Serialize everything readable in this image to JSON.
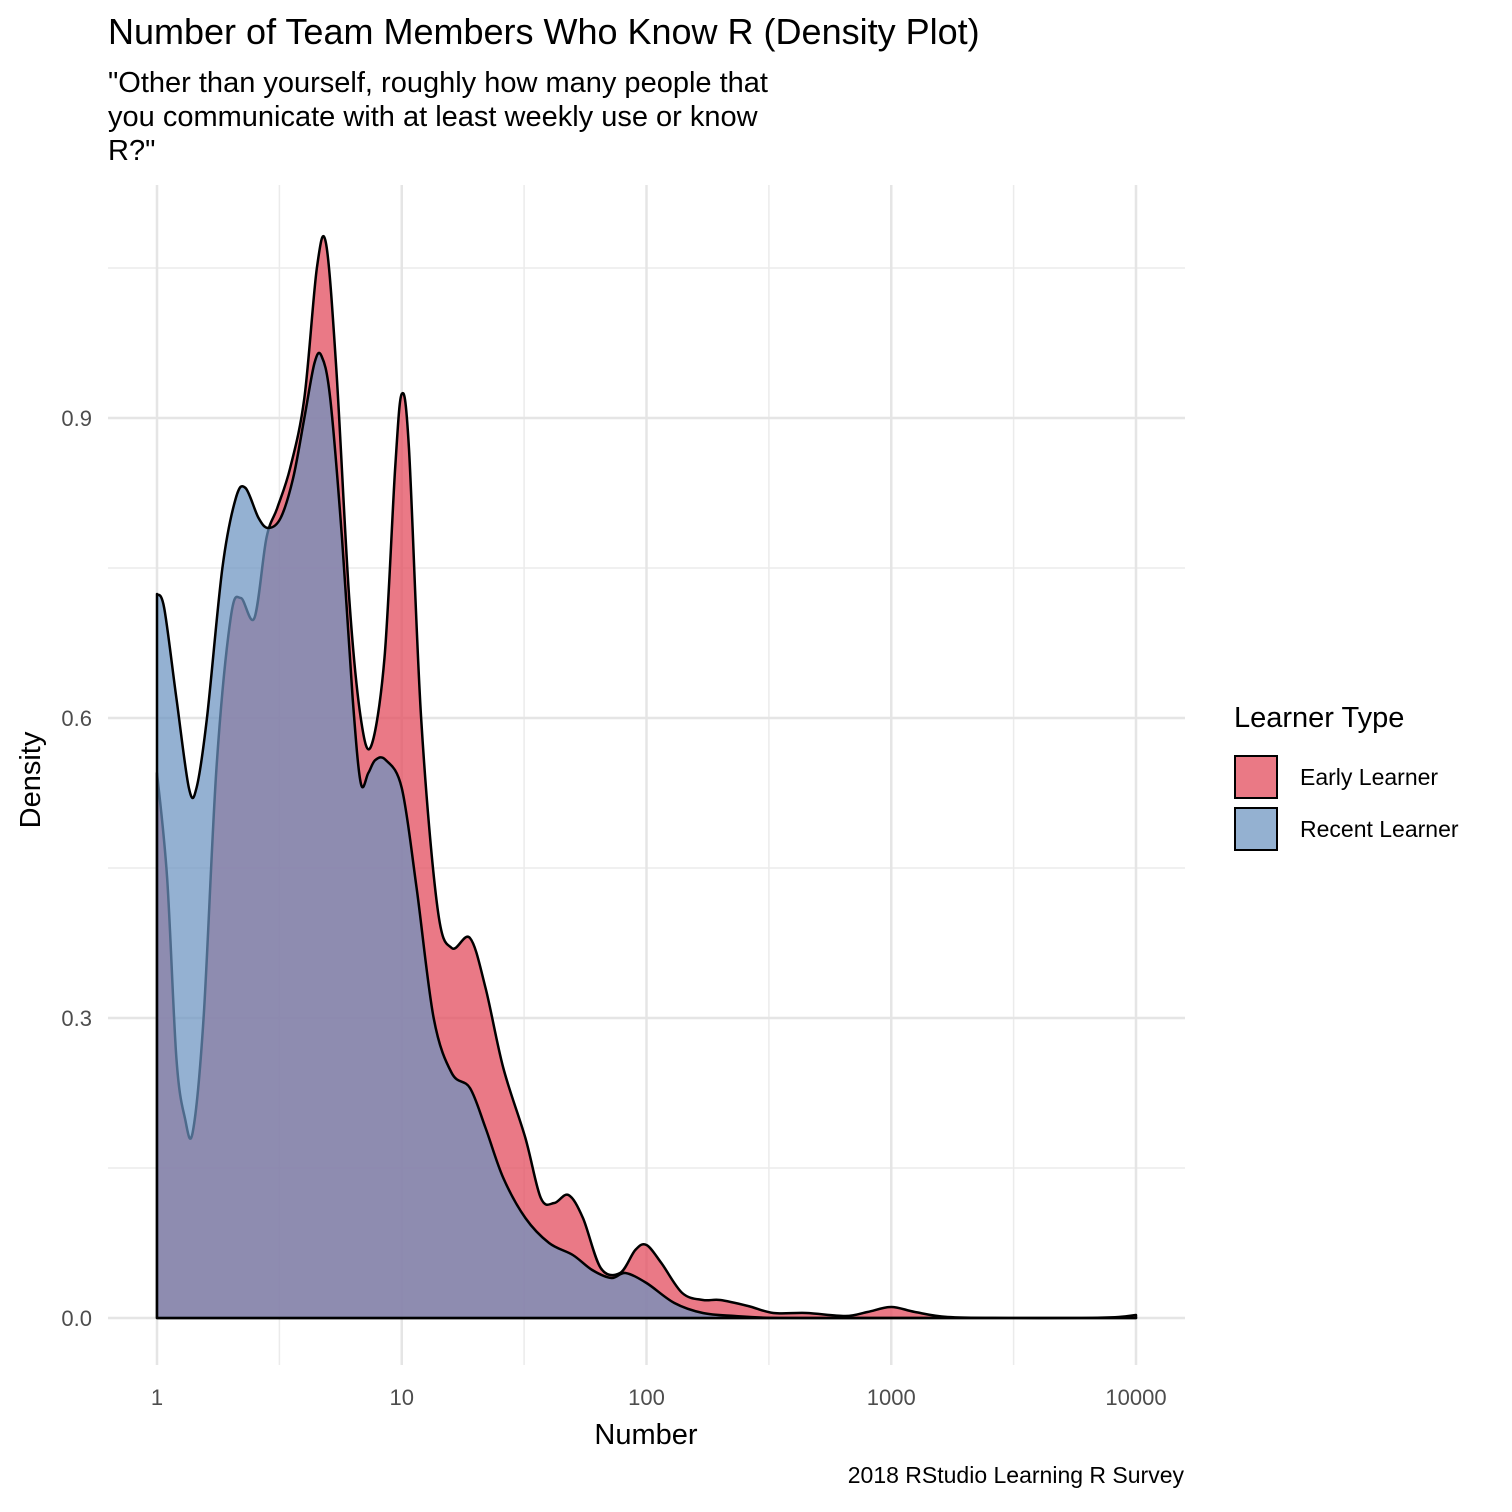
{
  "chart_data": {
    "type": "area",
    "subtype": "density",
    "title": "Number of Team Members Who Know R (Density Plot)",
    "subtitle": "\"Other than yourself, roughly how many people that\nyou communicate with at least weekly use or know\nR?\"",
    "caption": "2018 RStudio Learning R Survey",
    "xlabel": "Number",
    "ylabel": "Density",
    "x_scale": "log10",
    "xlim": [
      1,
      10000
    ],
    "ylim": [
      0,
      1.08
    ],
    "x_ticks": [
      {
        "value": 1,
        "label": "1"
      },
      {
        "value": 10,
        "label": "10"
      },
      {
        "value": 100,
        "label": "100"
      },
      {
        "value": 1000,
        "label": "1000"
      },
      {
        "value": 10000,
        "label": "10000"
      }
    ],
    "y_ticks": [
      {
        "value": 0,
        "label": "0.0"
      },
      {
        "value": 0.3,
        "label": "0.3"
      },
      {
        "value": 0.6,
        "label": "0.6"
      },
      {
        "value": 0.9,
        "label": "0.9"
      }
    ],
    "legend": {
      "title": "Learner Type",
      "position": "right"
    },
    "series": [
      {
        "name": "Early Learner",
        "color": "#e34c5d",
        "opacity": 0.75,
        "points": [
          [
            1,
            0.545
          ],
          [
            1.1,
            0.44
          ],
          [
            1.2,
            0.26
          ],
          [
            1.3,
            0.2
          ],
          [
            1.4,
            0.186
          ],
          [
            1.55,
            0.3
          ],
          [
            1.75,
            0.55
          ],
          [
            2,
            0.7
          ],
          [
            2.2,
            0.72
          ],
          [
            2.5,
            0.7
          ],
          [
            2.8,
            0.78
          ],
          [
            3.1,
            0.81
          ],
          [
            3.5,
            0.85
          ],
          [
            4.0,
            0.92
          ],
          [
            4.5,
            1.05
          ],
          [
            4.9,
            1.075
          ],
          [
            5.4,
            0.95
          ],
          [
            6.1,
            0.72
          ],
          [
            6.8,
            0.6
          ],
          [
            7.5,
            0.572
          ],
          [
            8.5,
            0.66
          ],
          [
            9.4,
            0.85
          ],
          [
            10.0,
            0.924
          ],
          [
            10.7,
            0.87
          ],
          [
            12,
            0.6
          ],
          [
            14,
            0.41
          ],
          [
            16,
            0.37
          ],
          [
            19,
            0.38
          ],
          [
            22,
            0.33
          ],
          [
            26,
            0.25
          ],
          [
            32,
            0.18
          ],
          [
            37,
            0.12
          ],
          [
            42,
            0.115
          ],
          [
            48,
            0.123
          ],
          [
            55,
            0.1
          ],
          [
            65,
            0.05
          ],
          [
            78,
            0.045
          ],
          [
            90,
            0.068
          ],
          [
            100,
            0.073
          ],
          [
            115,
            0.055
          ],
          [
            140,
            0.025
          ],
          [
            170,
            0.018
          ],
          [
            200,
            0.018
          ],
          [
            260,
            0.012
          ],
          [
            330,
            0.005
          ],
          [
            450,
            0.005
          ],
          [
            650,
            0.002
          ],
          [
            800,
            0.006
          ],
          [
            1000,
            0.011
          ],
          [
            1250,
            0.006
          ],
          [
            1700,
            0.001
          ],
          [
            3000,
            0.0
          ],
          [
            6000,
            0.0
          ],
          [
            8500,
            0.001
          ],
          [
            10000,
            0.003
          ]
        ]
      },
      {
        "name": "Recent Learner",
        "color": "#6b93c0",
        "opacity": 0.72,
        "points": [
          [
            1,
            0.724
          ],
          [
            1.07,
            0.71
          ],
          [
            1.2,
            0.62
          ],
          [
            1.35,
            0.53
          ],
          [
            1.45,
            0.53
          ],
          [
            1.6,
            0.6
          ],
          [
            1.85,
            0.75
          ],
          [
            2.1,
            0.82
          ],
          [
            2.3,
            0.83
          ],
          [
            2.6,
            0.8
          ],
          [
            2.85,
            0.79
          ],
          [
            3.2,
            0.8
          ],
          [
            3.6,
            0.84
          ],
          [
            4.0,
            0.9
          ],
          [
            4.4,
            0.955
          ],
          [
            4.7,
            0.962
          ],
          [
            5.1,
            0.92
          ],
          [
            5.7,
            0.78
          ],
          [
            6.3,
            0.62
          ],
          [
            6.8,
            0.535
          ],
          [
            7.3,
            0.545
          ],
          [
            7.8,
            0.558
          ],
          [
            8.6,
            0.558
          ],
          [
            10.0,
            0.53
          ],
          [
            11.5,
            0.43
          ],
          [
            13.5,
            0.3
          ],
          [
            16,
            0.245
          ],
          [
            19,
            0.23
          ],
          [
            22,
            0.19
          ],
          [
            26,
            0.14
          ],
          [
            32,
            0.1
          ],
          [
            40,
            0.075
          ],
          [
            50,
            0.063
          ],
          [
            60,
            0.048
          ],
          [
            72,
            0.04
          ],
          [
            82,
            0.045
          ],
          [
            100,
            0.035
          ],
          [
            130,
            0.015
          ],
          [
            170,
            0.005
          ],
          [
            230,
            0.002
          ],
          [
            350,
            0.0
          ],
          [
            1000,
            0.0
          ],
          [
            3000,
            0.0
          ],
          [
            10000,
            0.0
          ]
        ]
      }
    ]
  }
}
